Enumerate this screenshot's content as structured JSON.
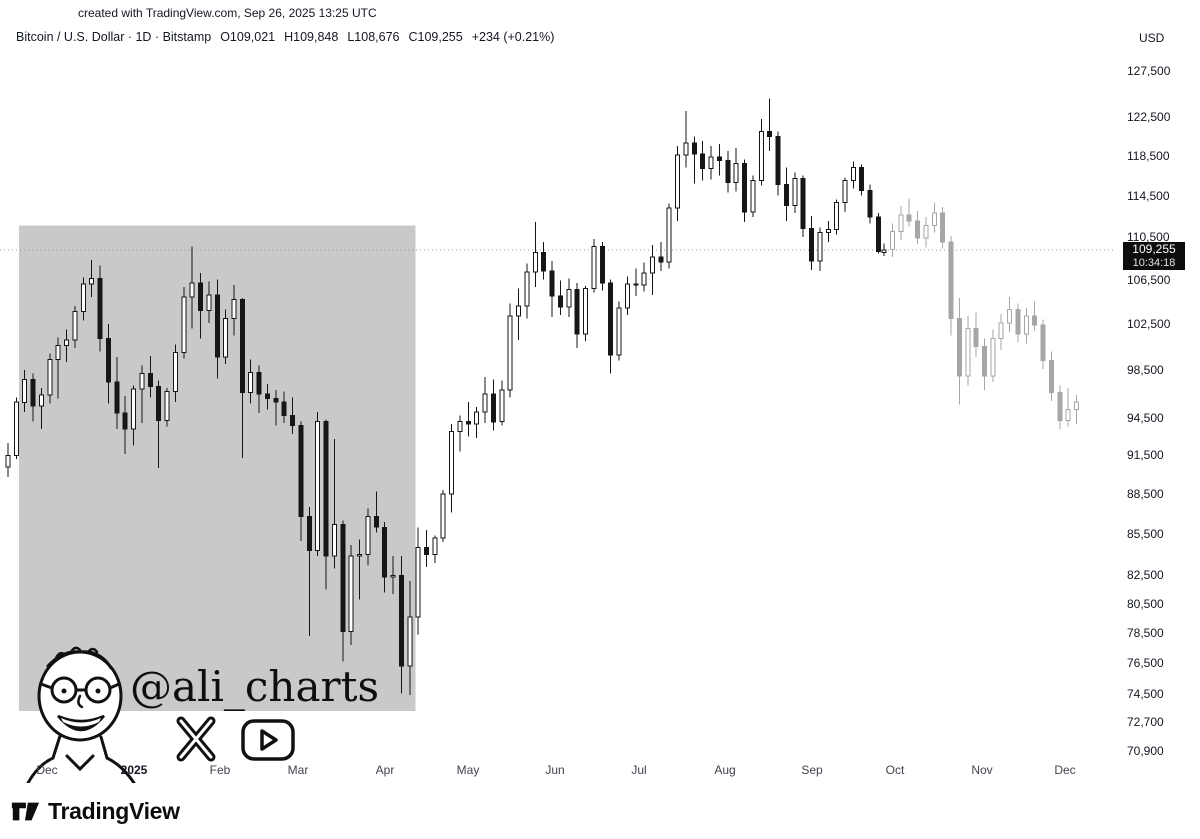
{
  "header": {
    "created_line": "created with TradingView.com, Sep 26, 2025 13:25 UTC"
  },
  "legend": {
    "symbol_line": "Bitcoin / U.S. Dollar · 1D · Bitstamp",
    "open": "O109,021",
    "high": "H109,848",
    "low": "L108,676",
    "close": "C109,255",
    "change": "+234 (+0.21%)"
  },
  "price_axis": {
    "currency": "USD",
    "ticks": [
      127500,
      122500,
      118500,
      114500,
      110500,
      106500,
      102500,
      98500,
      94500,
      91500,
      88500,
      85500,
      82500,
      80500,
      78500,
      76500,
      74500,
      72700,
      70900
    ],
    "labels": [
      "127,500",
      "122,500",
      "118,500",
      "114,500",
      "110,500",
      "106,500",
      "102,500",
      "98,500",
      "94,500",
      "91,500",
      "88,500",
      "85,500",
      "82,500",
      "80,500",
      "78,500",
      "76,500",
      "74,500",
      "72,700",
      "70,900"
    ]
  },
  "time_axis": {
    "labels": [
      {
        "text": "Dec",
        "day": 14
      },
      {
        "text": "2025",
        "day": 45,
        "year": true
      },
      {
        "text": "Feb",
        "day": 76
      },
      {
        "text": "Mar",
        "day": 104
      },
      {
        "text": "Apr",
        "day": 135
      },
      {
        "text": "May",
        "day": 165
      },
      {
        "text": "Jun",
        "day": 196
      },
      {
        "text": "Jul",
        "day": 226
      },
      {
        "text": "Aug",
        "day": 257
      },
      {
        "text": "Sep",
        "day": 288
      },
      {
        "text": "Oct",
        "day": 318
      },
      {
        "text": "Nov",
        "day": 349
      },
      {
        "text": "Dec",
        "day": 379
      }
    ]
  },
  "price_marker": {
    "label": "109,255",
    "countdown": "10:34:18"
  },
  "watermark": {
    "handle": "@ali_charts"
  },
  "footer": {
    "brand": "TradingView"
  },
  "colors": {
    "candle": "#161616",
    "projected": "#a6a6a6",
    "highlight": "#c9c9c9",
    "marker_bg": "#0d0d0d"
  },
  "chart_data": {
    "type": "candlestick",
    "title": "Bitcoin / U.S. Dollar · 1D · Bitstamp",
    "scale": "log",
    "current_price": 109255,
    "current_ohlc": {
      "open": 109021,
      "high": 109848,
      "low": 108676,
      "close": 109255,
      "change": "+234 (+0.21%)"
    },
    "ylim": [
      70900,
      127500
    ],
    "projected_from_day": 315,
    "highlight_box": {
      "day_start": 4,
      "day_end": 146,
      "price_top": 111600,
      "price_bottom": 73400
    },
    "candles": [
      [
        0,
        90600,
        92500,
        89800,
        91500
      ],
      [
        3,
        91500,
        96200,
        91200,
        95800
      ],
      [
        6,
        95800,
        98500,
        95000,
        97700
      ],
      [
        9,
        97700,
        98200,
        94200,
        95500
      ],
      [
        12,
        95500,
        97000,
        93600,
        96400
      ],
      [
        15,
        96400,
        99900,
        95700,
        99400
      ],
      [
        18,
        99400,
        101300,
        96100,
        100600
      ],
      [
        21,
        100600,
        102000,
        99200,
        101100
      ],
      [
        24,
        101100,
        104100,
        100400,
        103600
      ],
      [
        27,
        103600,
        106700,
        102800,
        106100
      ],
      [
        30,
        106100,
        108300,
        104900,
        106600
      ],
      [
        33,
        106600,
        107800,
        100100,
        101200
      ],
      [
        36,
        101200,
        102500,
        95700,
        97500
      ],
      [
        39,
        97500,
        99600,
        93600,
        94900
      ],
      [
        42,
        94900,
        96300,
        91600,
        93600
      ],
      [
        45,
        93600,
        97200,
        92300,
        96900
      ],
      [
        48,
        96900,
        98900,
        94100,
        98200
      ],
      [
        51,
        98200,
        99700,
        96200,
        97100
      ],
      [
        54,
        97100,
        97600,
        90500,
        94300
      ],
      [
        57,
        94300,
        97000,
        93800,
        96700
      ],
      [
        60,
        96700,
        100700,
        95800,
        100000
      ],
      [
        63,
        100000,
        105800,
        99500,
        104900
      ],
      [
        66,
        104900,
        109600,
        102100,
        106200
      ],
      [
        69,
        106200,
        107100,
        101200,
        103700
      ],
      [
        72,
        103700,
        106300,
        102600,
        105100
      ],
      [
        75,
        105100,
        106500,
        97800,
        99600
      ],
      [
        78,
        99600,
        103800,
        99000,
        103000
      ],
      [
        81,
        103000,
        106000,
        101500,
        104700
      ],
      [
        84,
        104700,
        104800,
        91300,
        96600
      ],
      [
        87,
        96600,
        99400,
        95700,
        98300
      ],
      [
        90,
        98300,
        98900,
        94900,
        96500
      ],
      [
        93,
        96500,
        97300,
        95200,
        96100
      ],
      [
        96,
        96100,
        96800,
        93900,
        95800
      ],
      [
        99,
        95800,
        96700,
        94100,
        94700
      ],
      [
        102,
        94700,
        96200,
        93200,
        93900
      ],
      [
        105,
        93900,
        94200,
        85000,
        86800
      ],
      [
        108,
        86800,
        87500,
        78300,
        84300
      ],
      [
        111,
        84300,
        95000,
        83900,
        94200
      ],
      [
        114,
        94200,
        94400,
        81500,
        83900
      ],
      [
        117,
        83900,
        92800,
        83000,
        86200
      ],
      [
        120,
        86200,
        86500,
        76600,
        78600
      ],
      [
        123,
        78600,
        84700,
        77700,
        83900
      ],
      [
        126,
        83900,
        85100,
        80800,
        84000
      ],
      [
        129,
        84000,
        87400,
        83200,
        86800
      ],
      [
        132,
        86800,
        88700,
        85600,
        86000
      ],
      [
        135,
        86000,
        86400,
        81300,
        82400
      ],
      [
        138,
        82400,
        83900,
        81200,
        82500
      ],
      [
        141,
        82500,
        83900,
        74500,
        76300
      ],
      [
        144,
        76300,
        82100,
        74400,
        79600
      ],
      [
        147,
        79600,
        86000,
        78400,
        84500
      ],
      [
        150,
        84500,
        85800,
        83100,
        84000
      ],
      [
        153,
        84000,
        85400,
        83400,
        85200
      ],
      [
        156,
        85200,
        88800,
        84900,
        88500
      ],
      [
        159,
        88500,
        94000,
        87100,
        93400
      ],
      [
        162,
        93400,
        94700,
        91800,
        94200
      ],
      [
        165,
        94200,
        95800,
        93000,
        94000
      ],
      [
        168,
        94000,
        95400,
        92900,
        95000
      ],
      [
        171,
        95000,
        97900,
        94100,
        96500
      ],
      [
        174,
        96500,
        97700,
        93500,
        94200
      ],
      [
        177,
        94200,
        97600,
        93900,
        96800
      ],
      [
        180,
        96800,
        104300,
        96200,
        103200
      ],
      [
        183,
        103200,
        105700,
        101100,
        104100
      ],
      [
        186,
        104100,
        108000,
        103000,
        107200
      ],
      [
        189,
        107200,
        111900,
        105800,
        109000
      ],
      [
        192,
        109000,
        110000,
        106500,
        107300
      ],
      [
        195,
        107300,
        108200,
        103100,
        105000
      ],
      [
        198,
        105000,
        106400,
        103300,
        104000
      ],
      [
        201,
        104000,
        106600,
        103100,
        105600
      ],
      [
        204,
        105600,
        106200,
        100400,
        101600
      ],
      [
        207,
        101600,
        105900,
        101000,
        105700
      ],
      [
        210,
        105700,
        110300,
        105300,
        109600
      ],
      [
        213,
        109600,
        110000,
        105500,
        106200
      ],
      [
        216,
        106200,
        106500,
        98200,
        99800
      ],
      [
        219,
        99800,
        104500,
        99300,
        103900
      ],
      [
        222,
        103900,
        106800,
        103300,
        106100
      ],
      [
        225,
        106100,
        107500,
        105000,
        106000
      ],
      [
        228,
        106000,
        108100,
        105400,
        107100
      ],
      [
        231,
        107100,
        109700,
        105100,
        108600
      ],
      [
        234,
        108600,
        110000,
        107300,
        108100
      ],
      [
        237,
        108100,
        113700,
        107500,
        113300
      ],
      [
        240,
        113300,
        119500,
        112000,
        118600
      ],
      [
        243,
        118600,
        123200,
        117300,
        119800
      ],
      [
        246,
        119800,
        120500,
        115700,
        118700
      ],
      [
        249,
        118700,
        120000,
        116000,
        117200
      ],
      [
        252,
        117200,
        119500,
        116100,
        118400
      ],
      [
        255,
        118400,
        119700,
        116500,
        118000
      ],
      [
        258,
        118000,
        119000,
        114800,
        115800
      ],
      [
        261,
        115800,
        119300,
        114900,
        117700
      ],
      [
        264,
        117700,
        118100,
        111900,
        112900
      ],
      [
        267,
        112900,
        116500,
        112400,
        116000
      ],
      [
        270,
        116000,
        122300,
        115500,
        121000
      ],
      [
        273,
        121000,
        124500,
        119000,
        120500
      ],
      [
        276,
        120500,
        121000,
        114500,
        115600
      ],
      [
        279,
        115600,
        117300,
        112000,
        113500
      ],
      [
        282,
        113500,
        116800,
        112800,
        116200
      ],
      [
        285,
        116200,
        116500,
        110500,
        111300
      ],
      [
        288,
        111300,
        112500,
        107400,
        108200
      ],
      [
        291,
        108200,
        111400,
        107300,
        110900
      ],
      [
        294,
        110900,
        112000,
        110000,
        111200
      ],
      [
        297,
        111200,
        114100,
        110700,
        113800
      ],
      [
        300,
        113800,
        116300,
        112900,
        116000
      ],
      [
        303,
        116000,
        117900,
        115200,
        117300
      ],
      [
        306,
        117300,
        117600,
        114500,
        115000
      ],
      [
        309,
        115000,
        115600,
        111800,
        112400
      ],
      [
        312,
        112400,
        112800,
        108900,
        109100
      ],
      [
        314,
        109021,
        109848,
        108676,
        109255
      ],
      [
        317,
        109300,
        111800,
        108600,
        111000
      ],
      [
        320,
        111000,
        113500,
        110200,
        112600
      ],
      [
        323,
        112600,
        114200,
        111500,
        112000
      ],
      [
        326,
        112000,
        113000,
        109800,
        110400
      ],
      [
        329,
        110400,
        112400,
        109500,
        111600
      ],
      [
        332,
        111600,
        113800,
        110900,
        112800
      ],
      [
        335,
        112800,
        113400,
        109400,
        110000
      ],
      [
        338,
        110000,
        110600,
        101500,
        103000
      ],
      [
        341,
        103000,
        104800,
        95600,
        98000
      ],
      [
        344,
        98000,
        103200,
        97200,
        102100
      ],
      [
        347,
        102100,
        103500,
        99600,
        100500
      ],
      [
        350,
        100500,
        101200,
        96800,
        98000
      ],
      [
        353,
        98000,
        102000,
        97500,
        101200
      ],
      [
        356,
        101200,
        103400,
        100200,
        102600
      ],
      [
        359,
        102600,
        104900,
        101800,
        103800
      ],
      [
        362,
        103800,
        104300,
        100900,
        101600
      ],
      [
        365,
        101600,
        103900,
        100800,
        103200
      ],
      [
        368,
        103200,
        104500,
        101900,
        102400
      ],
      [
        371,
        102400,
        102900,
        98600,
        99300
      ],
      [
        374,
        99300,
        100100,
        95900,
        96600
      ],
      [
        377,
        96600,
        97200,
        93600,
        94300
      ],
      [
        380,
        94300,
        97000,
        93800,
        95200
      ],
      [
        383,
        95200,
        96400,
        94000,
        95800
      ]
    ]
  }
}
